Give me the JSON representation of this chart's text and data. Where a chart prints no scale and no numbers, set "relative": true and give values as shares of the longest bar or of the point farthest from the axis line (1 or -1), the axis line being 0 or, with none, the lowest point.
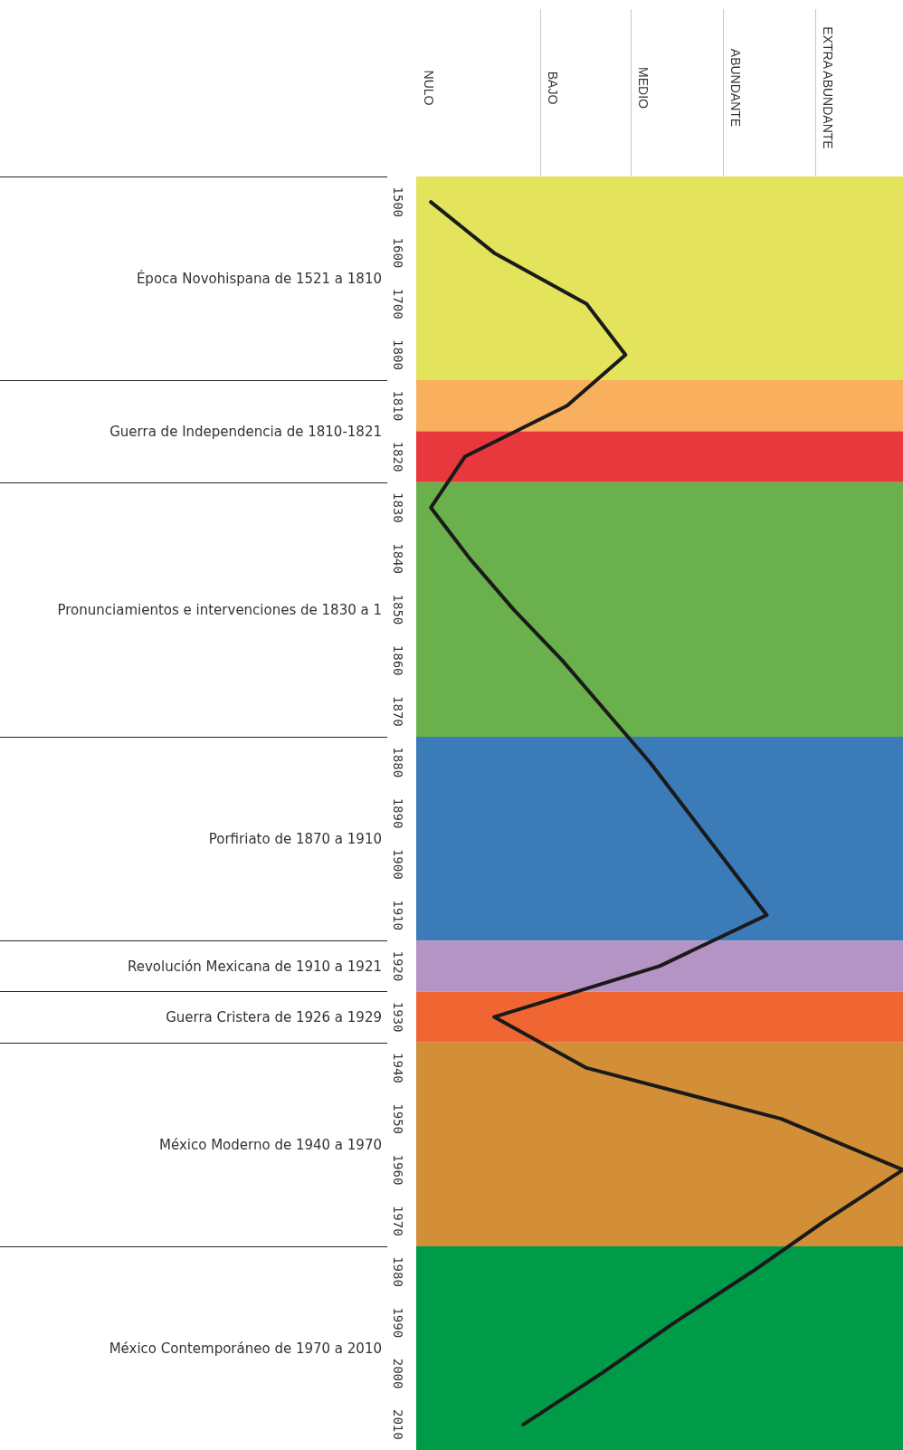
{
  "chart_data": {
    "type": "line",
    "orientation": "horizontal",
    "relative": true,
    "categories": [
      "1500",
      "1600",
      "1700",
      "1800",
      "1810",
      "1820",
      "1830",
      "1840",
      "1850",
      "1860",
      "1870",
      "1880",
      "1890",
      "1900",
      "1910",
      "1920",
      "1930",
      "1940",
      "1950",
      "1960",
      "1970",
      "1980",
      "1990",
      "2000",
      "2010"
    ],
    "series": [
      {
        "color": "#1a1a1a",
        "values": [
          0.03,
          0.16,
          0.35,
          0.43,
          0.31,
          0.1,
          0.03,
          0.11,
          0.2,
          0.3,
          0.39,
          0.48,
          0.56,
          0.64,
          0.72,
          0.5,
          0.16,
          0.35,
          0.75,
          1,
          0.84,
          0.69,
          0.53,
          0.38,
          0.22
        ]
      }
    ],
    "bands": [
      {
        "axis": "y",
        "from": "1500",
        "to": "1800",
        "color": "#e4e45c",
        "label": "Época Novohispana de 1521 a 1810"
      },
      {
        "axis": "y",
        "from": "1810",
        "to": "1810",
        "color": "#f9b05e",
        "label": "Guerra de Independencia de 1810-1821"
      },
      {
        "axis": "y",
        "from": "1820",
        "to": "1820",
        "color": "#e8383d"
      },
      {
        "axis": "y",
        "from": "1830",
        "to": "1870",
        "color": "#6ab04c",
        "label": "Pronunciamientos e intervenciones de 1830 a 1"
      },
      {
        "axis": "y",
        "from": "1880",
        "to": "1910",
        "color": "#3b7bb8",
        "label": "Porfiriato de 1870 a 1910"
      },
      {
        "axis": "y",
        "from": "1920",
        "to": "1920",
        "color": "#b394c4",
        "label": "Revolución Mexicana de 1910 a 1921"
      },
      {
        "axis": "y",
        "from": "1930",
        "to": "1930",
        "color": "#ef6633",
        "label": "Guerra Cristera de 1926 a 1929"
      },
      {
        "axis": "y",
        "from": "1940",
        "to": "1970",
        "color": "#d28f38",
        "label": "México Moderno de 1940 a 1970"
      },
      {
        "axis": "y",
        "from": "1980",
        "to": "2010",
        "color": "#009b48",
        "label": "México Contemporáneo de 1970 a 2010"
      }
    ],
    "annotations": [
      "NULO",
      "BAJO",
      "MEDIO",
      "ABUNDANTE",
      "EXTRA ABUNDANTE"
    ],
    "marker": "none",
    "line_style": "solid"
  }
}
